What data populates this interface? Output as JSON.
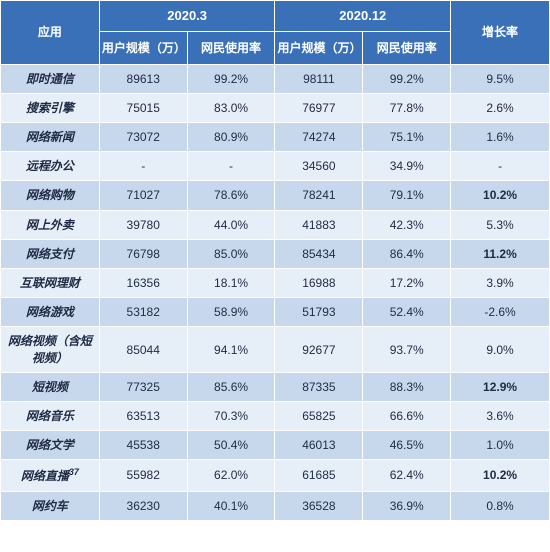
{
  "type": "table",
  "colors": {
    "header_bg": "#3970b8",
    "header_fg": "#ffffff",
    "row_odd_bg": "#c7d8ec",
    "row_even_bg": "#e6eef7",
    "text": "#1f2a44",
    "highlight": "#e03030",
    "border": "#ffffff"
  },
  "fontsize": {
    "header": 12,
    "body": 12
  },
  "columns": {
    "app": "应用",
    "period1": "2020.3",
    "period2": "2020.12",
    "users": "用户规模（万）",
    "usage": "网民使用率",
    "growth": "增长率"
  },
  "rows": [
    {
      "app": "即时通信",
      "u1": "89613",
      "r1": "99.2%",
      "u2": "98111",
      "r2": "99.2%",
      "g": "9.5%",
      "hl": false
    },
    {
      "app": "搜索引擎",
      "u1": "75015",
      "r1": "83.0%",
      "u2": "76977",
      "r2": "77.8%",
      "g": "2.6%",
      "hl": false
    },
    {
      "app": "网络新闻",
      "u1": "73072",
      "r1": "80.9%",
      "u2": "74274",
      "r2": "75.1%",
      "g": "1.6%",
      "hl": false
    },
    {
      "app": "远程办公",
      "u1": "-",
      "r1": "-",
      "u2": "34560",
      "r2": "34.9%",
      "g": "-",
      "hl": false
    },
    {
      "app": "网络购物",
      "u1": "71027",
      "r1": "78.6%",
      "u2": "78241",
      "r2": "79.1%",
      "g": "10.2%",
      "hl": true
    },
    {
      "app": "网上外卖",
      "u1": "39780",
      "r1": "44.0%",
      "u2": "41883",
      "r2": "42.3%",
      "g": "5.3%",
      "hl": false
    },
    {
      "app": "网络支付",
      "u1": "76798",
      "r1": "85.0%",
      "u2": "85434",
      "r2": "86.4%",
      "g": "11.2%",
      "hl": true
    },
    {
      "app": "互联网理财",
      "u1": "16356",
      "r1": "18.1%",
      "u2": "16988",
      "r2": "17.2%",
      "g": "3.9%",
      "hl": false
    },
    {
      "app": "网络游戏",
      "u1": "53182",
      "r1": "58.9%",
      "u2": "51793",
      "r2": "52.4%",
      "g": "-2.6%",
      "hl": false
    },
    {
      "app": "网络视频（含短视频）",
      "u1": "85044",
      "r1": "94.1%",
      "u2": "92677",
      "r2": "93.7%",
      "g": "9.0%",
      "hl": false
    },
    {
      "app": "短视频",
      "u1": "77325",
      "r1": "85.6%",
      "u2": "87335",
      "r2": "88.3%",
      "g": "12.9%",
      "hl": true
    },
    {
      "app": "网络音乐",
      "u1": "63513",
      "r1": "70.3%",
      "u2": "65825",
      "r2": "66.6%",
      "g": "3.6%",
      "hl": false
    },
    {
      "app": "网络文学",
      "u1": "45538",
      "r1": "50.4%",
      "u2": "46013",
      "r2": "46.5%",
      "g": "1.0%",
      "hl": false
    },
    {
      "app": "网络直播",
      "sup": "37",
      "u1": "55982",
      "r1": "62.0%",
      "u2": "61685",
      "r2": "62.4%",
      "g": "10.2%",
      "hl": true
    },
    {
      "app": "网约车",
      "u1": "36230",
      "r1": "40.1%",
      "u2": "36528",
      "r2": "36.9%",
      "g": "0.8%",
      "hl": false
    }
  ]
}
